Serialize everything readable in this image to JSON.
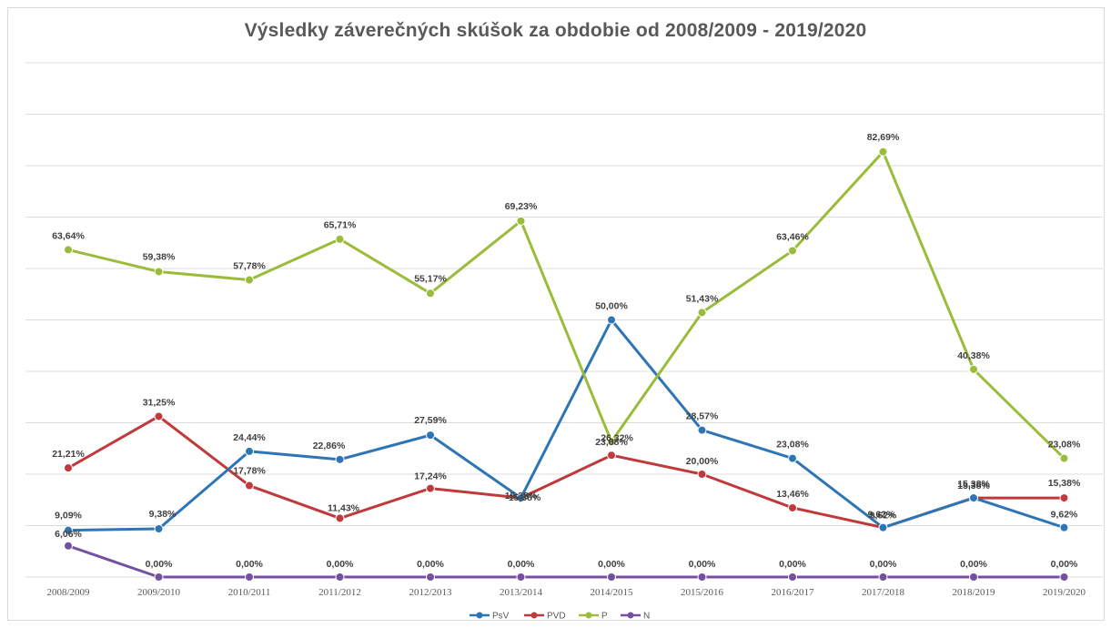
{
  "chart_data": {
    "type": "line",
    "title": "Výsledky záverečných skúšok za obdobie od 2008/2009 - 2019/2020",
    "xlabel": "",
    "ylabel": "",
    "ylim": [
      0,
      100
    ],
    "grid": true,
    "legend_position": "bottom",
    "categories": [
      "2008/2009",
      "2009/2010",
      "2010/2011",
      "2011/2012",
      "2012/2013",
      "2013/2014",
      "2014/2015",
      "2015/2016",
      "2016/2017",
      "2017/2018",
      "2018/2019",
      "2019/2020"
    ],
    "series": [
      {
        "name": "PsV",
        "color": "#2e75b6",
        "values": [
          9.09,
          9.38,
          24.44,
          22.86,
          27.59,
          15.38,
          50.0,
          28.57,
          23.08,
          9.62,
          15.38,
          9.62
        ],
        "labels": [
          "9,09%",
          "9,38%",
          "24,44%",
          "22,86%",
          "27,59%",
          "15,38%",
          "50,00%",
          "28,57%",
          "23,08%",
          "9,62%",
          "15,38%",
          "9,62%"
        ]
      },
      {
        "name": "PVD",
        "color": "#c0393b",
        "values": [
          21.21,
          31.25,
          17.78,
          11.43,
          17.24,
          15.38,
          23.68,
          20.0,
          13.46,
          9.62,
          15.38,
          15.38
        ],
        "labels": [
          "21,21%",
          "31,25%",
          "17,78%",
          "11,43%",
          "17,24%",
          "15,38%",
          "23,68%",
          "20,00%",
          "13,46%",
          "9,62%",
          "15,38%",
          "15,38%"
        ]
      },
      {
        "name": "P",
        "color": "#9bbb3b",
        "values": [
          63.64,
          59.38,
          57.78,
          65.71,
          55.17,
          69.23,
          26.32,
          51.43,
          63.46,
          82.69,
          40.38,
          23.08
        ],
        "labels": [
          "63,64%",
          "59,38%",
          "57,78%",
          "65,71%",
          "55,17%",
          "69,23%",
          "26,32%",
          "51,43%",
          "63,46%",
          "82,69%",
          "40,38%",
          "23,08%"
        ]
      },
      {
        "name": "N",
        "color": "#7451a0",
        "values": [
          6.06,
          0,
          0,
          0,
          0,
          0,
          0,
          0,
          0,
          0,
          0,
          0
        ],
        "labels": [
          "6,06%",
          "0,00%",
          "0,00%",
          "0,00%",
          "0,00%",
          "0,00%",
          "0,00%",
          "0,00%",
          "0,00%",
          "0,00%",
          "0,00%",
          "0,00%"
        ]
      }
    ]
  }
}
